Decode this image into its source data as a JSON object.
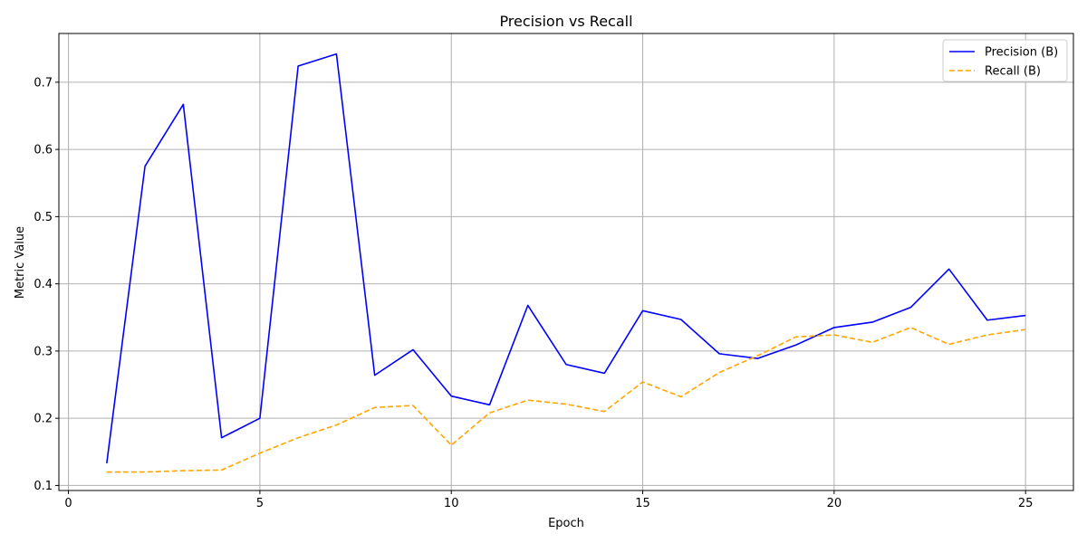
{
  "chart_data": {
    "type": "line",
    "title": "Precision vs Recall",
    "xlabel": "Epoch",
    "ylabel": "Metric Value",
    "xlim": [
      -0.25,
      26.25
    ],
    "ylim": [
      0.0925,
      0.7725
    ],
    "xticks": [
      0,
      5,
      10,
      15,
      20,
      25
    ],
    "yticks": [
      0.1,
      0.2,
      0.3,
      0.4,
      0.5,
      0.6,
      0.7
    ],
    "grid": true,
    "legend_position": "top-right",
    "x": [
      1,
      2,
      3,
      4,
      5,
      6,
      7,
      8,
      9,
      10,
      11,
      12,
      13,
      14,
      15,
      16,
      17,
      18,
      19,
      20,
      21,
      22,
      23,
      24,
      25
    ],
    "series": [
      {
        "name": "Precision (B)",
        "color": "#0000ff",
        "style": "solid",
        "values": [
          0.133,
          0.575,
          0.667,
          0.171,
          0.2,
          0.724,
          0.742,
          0.264,
          0.302,
          0.233,
          0.22,
          0.368,
          0.28,
          0.267,
          0.36,
          0.347,
          0.296,
          0.289,
          0.309,
          0.335,
          0.343,
          0.365,
          0.422,
          0.346,
          0.353
        ]
      },
      {
        "name": "Recall (B)",
        "color": "#ffa500",
        "style": "dashed",
        "values": [
          0.12,
          0.12,
          0.122,
          0.123,
          0.148,
          0.171,
          0.19,
          0.216,
          0.219,
          0.16,
          0.208,
          0.227,
          0.221,
          0.21,
          0.254,
          0.232,
          0.268,
          0.293,
          0.321,
          0.324,
          0.313,
          0.335,
          0.31,
          0.324,
          0.332
        ]
      }
    ]
  }
}
